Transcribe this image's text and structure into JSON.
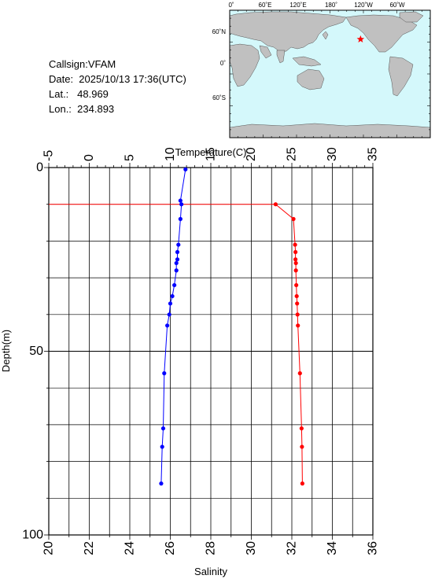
{
  "info": {
    "callsign": "Callsign:VFAM",
    "date": "Date:  2025/10/13 17:36(UTC)",
    "lat_label": "Lat.:",
    "lat_value": "48.969",
    "lon_label": "Lon.:",
    "lon_value": "234.893"
  },
  "map": {
    "lon_labels": [
      "0˚",
      "60˚E",
      "120˚E",
      "180˚",
      "120˚W",
      "60˚W"
    ],
    "lat_labels": [
      "60˚N",
      "0˚",
      "60˚S"
    ],
    "ocean_color": "#d4f8fb",
    "land_color": "#c0c0c0",
    "marker_color": "#ff0000",
    "marker_icon": "star-icon"
  },
  "chart_data": {
    "type": "line",
    "temperature_axis_label": "Temperature(C)",
    "salinity_axis_label": "Salinity",
    "depth_axis_label": "Depth(m)",
    "temperature_range": [
      -5,
      35
    ],
    "temperature_ticks": [
      "-5",
      "0",
      "5",
      "10",
      "15",
      "20",
      "25",
      "30",
      "35"
    ],
    "salinity_range": [
      20,
      36
    ],
    "salinity_ticks": [
      "20",
      "22",
      "24",
      "26",
      "28",
      "30",
      "32",
      "34",
      "36"
    ],
    "depth_range": [
      0,
      100
    ],
    "depth_ticks": [
      "0",
      "50",
      "100"
    ],
    "grid": true,
    "temperature_color": "#ff0000",
    "salinity_color": "#0000ff",
    "temperature_profile": [
      {
        "depth": 10,
        "value": 23.0
      },
      {
        "depth": 14,
        "value": 25.2
      },
      {
        "depth": 21,
        "value": 25.4
      },
      {
        "depth": 23,
        "value": 25.45
      },
      {
        "depth": 25,
        "value": 25.45
      },
      {
        "depth": 26,
        "value": 25.5
      },
      {
        "depth": 28,
        "value": 25.5
      },
      {
        "depth": 32,
        "value": 25.55
      },
      {
        "depth": 35,
        "value": 25.6
      },
      {
        "depth": 37,
        "value": 25.65
      },
      {
        "depth": 40,
        "value": 25.7
      },
      {
        "depth": 43,
        "value": 25.75
      },
      {
        "depth": 56,
        "value": 26.0
      },
      {
        "depth": 71,
        "value": 26.2
      },
      {
        "depth": 76,
        "value": 26.25
      },
      {
        "depth": 86,
        "value": 26.3
      }
    ],
    "salinity_profile": [
      {
        "depth": 0.5,
        "value": 26.75
      },
      {
        "depth": 9,
        "value": 26.5
      },
      {
        "depth": 10,
        "value": 26.55
      },
      {
        "depth": 14,
        "value": 26.5
      },
      {
        "depth": 21,
        "value": 26.4
      },
      {
        "depth": 23,
        "value": 26.35
      },
      {
        "depth": 25,
        "value": 26.35
      },
      {
        "depth": 26,
        "value": 26.3
      },
      {
        "depth": 28,
        "value": 26.3
      },
      {
        "depth": 32,
        "value": 26.2
      },
      {
        "depth": 35,
        "value": 26.1
      },
      {
        "depth": 37,
        "value": 26.0
      },
      {
        "depth": 40,
        "value": 25.95
      },
      {
        "depth": 43,
        "value": 25.85
      },
      {
        "depth": 56,
        "value": 25.7
      },
      {
        "depth": 71,
        "value": 25.65
      },
      {
        "depth": 76,
        "value": 25.6
      },
      {
        "depth": 86,
        "value": 25.55
      }
    ]
  }
}
